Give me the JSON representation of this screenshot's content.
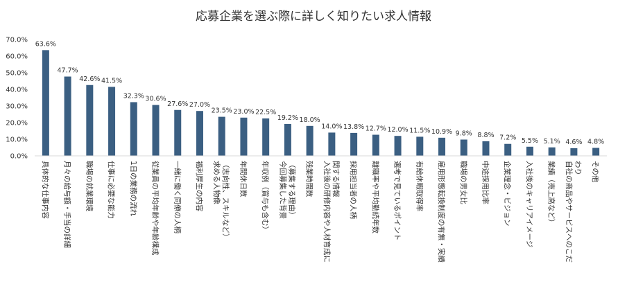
{
  "chart_data": {
    "type": "bar",
    "title": "応募企業を選ぶ際に詳しく知りたい求人情報",
    "xlabel": "",
    "ylabel": "",
    "ylim": [
      0,
      70
    ],
    "yticks": [
      "0.0%",
      "10.0%",
      "20.0%",
      "30.0%",
      "40.0%",
      "50.0%",
      "60.0%",
      "70.0%"
    ],
    "bar_color": "#3b5f82",
    "grid": false,
    "categories": [
      "具体的な仕事内容",
      "月々の給与額・手当の詳細",
      "職場の就業環境",
      "仕事に必要な能力",
      "1日の業務の流れ",
      "従業員の平均年齢や年齢構成",
      "一緒に働く同僚の人柄",
      "福利厚生の内容",
      "求める人物像（志向性、スキルなど）",
      "年間休日数",
      "年収例（賞与も含む）",
      "今回募集した背景（募集する理由）",
      "残業時間数",
      "入社後の研修内容や人材育成に関する情報",
      "採用担当者の人柄",
      "離職率や平均勤続年数",
      "選考で見ているポイント",
      "有給休暇取得率",
      "雇用形態転換制度の有無・実績",
      "職場の男女比",
      "中途採用比率",
      "企業理念・ビジョン",
      "入社後のキャリアイメージ",
      "業績（売上高など）",
      "自社の商品やサービスへのこだわり",
      "その他"
    ],
    "category_lines": [
      [
        "具体的な仕事内容"
      ],
      [
        "月々の給与額・手当の詳細"
      ],
      [
        "職場の就業環境"
      ],
      [
        "仕事に必要な能力"
      ],
      [
        "1日の業務の流れ"
      ],
      [
        "従業員の平均年齢や年齢構成"
      ],
      [
        "一緒に働く同僚の人柄"
      ],
      [
        "福利厚生の内容"
      ],
      [
        "求める人物像",
        "（志向性、スキルなど）"
      ],
      [
        "年間休日数"
      ],
      [
        "年収例（賞与も含む）"
      ],
      [
        "今回募集した背景",
        "（募集する理由）"
      ],
      [
        "残業時間数"
      ],
      [
        "入社後の研修内容や人材育成に",
        "関する情報"
      ],
      [
        "採用担当者の人柄"
      ],
      [
        "離職率や平均勤続年数"
      ],
      [
        "選考で見ているポイント"
      ],
      [
        "有給休暇取得率"
      ],
      [
        "雇用形態転換制度の有無・実績"
      ],
      [
        "職場の男女比"
      ],
      [
        "中途採用比率"
      ],
      [
        "企業理念・ビジョン"
      ],
      [
        "入社後のキャリアイメージ"
      ],
      [
        "業績（売上高など）"
      ],
      [
        "自社の商品やサービスへのこだ",
        "わり"
      ],
      [
        "その他"
      ]
    ],
    "values": [
      63.6,
      47.7,
      42.6,
      41.5,
      32.3,
      30.6,
      27.6,
      27.0,
      23.5,
      23.0,
      22.5,
      19.2,
      18.0,
      14.0,
      13.8,
      12.7,
      12.0,
      11.5,
      10.9,
      9.8,
      8.8,
      7.2,
      5.5,
      5.1,
      4.6,
      4.8
    ],
    "value_labels": [
      "63.6%",
      "47.7%",
      "42.6%",
      "41.5%",
      "32.3%",
      "30.6%",
      "27.6%",
      "27.0%",
      "23.5%",
      "23.0%",
      "22.5%",
      "19.2%",
      "18.0%",
      "14.0%",
      "13.8%",
      "12.7%",
      "12.0%",
      "11.5%",
      "10.9%",
      "9.8%",
      "8.8%",
      "7.2%",
      "5.5%",
      "5.1%",
      "4.6%",
      "4.8%"
    ]
  }
}
